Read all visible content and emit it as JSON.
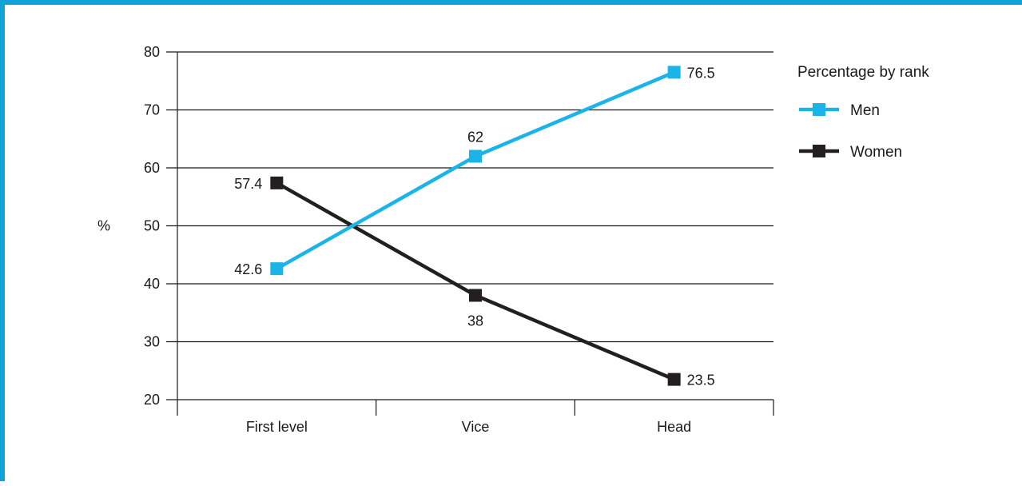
{
  "chart_data": {
    "type": "line",
    "categories": [
      "First level",
      "Vice",
      "Head"
    ],
    "ylabel": "%",
    "ylim": [
      20,
      80
    ],
    "yticks": [
      20,
      30,
      40,
      50,
      60,
      70,
      80
    ],
    "grid": true,
    "legend": {
      "title": "Percentage by rank",
      "placement": "right"
    },
    "series": [
      {
        "name": "Men",
        "values": [
          42.6,
          62,
          76.5
        ],
        "labels": [
          "42.6",
          "62",
          "76.5"
        ],
        "color": "#1ab4e8"
      },
      {
        "name": "Women",
        "values": [
          57.4,
          38,
          23.5
        ],
        "labels": [
          "57.4",
          "38",
          "23.5"
        ],
        "color": "#231f20"
      }
    ]
  }
}
